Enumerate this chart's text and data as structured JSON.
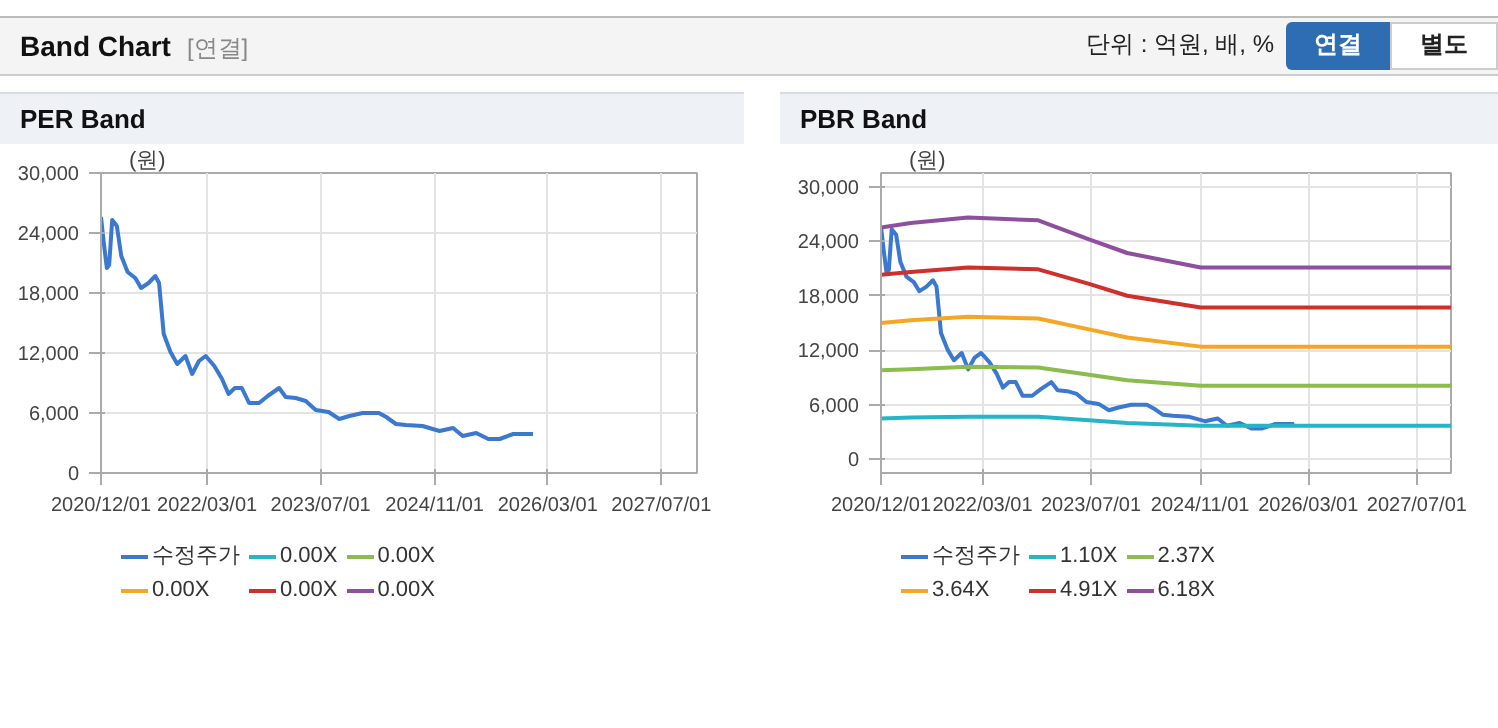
{
  "chart_data": [
    {
      "type": "other",
      "title": "Band Chart",
      "annotations": [
        "[연결]",
        "단위 : 억원, 배, %",
        "연결",
        "별도"
      ]
    },
    {
      "type": "line",
      "title": "PER Band",
      "ylabel": "(원)",
      "ylim": [
        0,
        30000
      ],
      "yticks": [
        0,
        {
          "value": 6000,
          "label": "6,000"
        },
        {
          "value": 12000,
          "label": "12,000"
        },
        {
          "value": 18000,
          "label": "18,000"
        },
        {
          "value": 24000,
          "label": "24,000"
        },
        {
          "value": 30000,
          "label": "30,000"
        }
      ],
      "xlim": [
        "2020-12-01",
        "2027-12-01"
      ],
      "xticks": [
        {
          "value": "2020-12-01",
          "label": "2020/12/01"
        },
        {
          "value": "2022-03-01",
          "label": "2022/03/01"
        },
        {
          "value": "2023-07-01",
          "label": "2023/07/01"
        },
        {
          "value": "2024-11-01",
          "label": "2024/11/01"
        },
        {
          "value": "2026-03-01",
          "label": "2026/03/01"
        },
        {
          "value": "2027-07-01",
          "label": "2027/07/01"
        }
      ],
      "grid": true,
      "legend": "bottom",
      "series": [
        {
          "name": "수정주가",
          "color": "#3b78d0",
          "x": [
            "2020-12-01",
            "2020-12-12",
            "2020-12-26",
            "2021-01-05",
            "2021-01-18",
            "2021-02-07",
            "2021-02-26",
            "2021-03-25",
            "2021-04-27",
            "2021-05-22",
            "2021-06-23",
            "2021-07-22",
            "2021-08-07",
            "2021-08-27",
            "2021-09-25",
            "2021-10-24",
            "2021-11-28",
            "2021-12-27",
            "2022-01-25",
            "2022-02-23",
            "2022-04-01",
            "2022-05-04",
            "2022-06-01",
            "2022-06-28",
            "2022-07-28",
            "2022-08-28",
            "2022-10-10",
            "2022-11-16",
            "2023-01-04",
            "2023-02-01",
            "2023-03-16",
            "2023-04-28",
            "2023-06-10",
            "2023-08-04",
            "2023-09-19",
            "2023-11-01",
            "2023-12-28",
            "2024-03-07",
            "2024-04-07",
            "2024-05-19",
            "2024-07-01",
            "2024-09-10",
            "2024-11-22",
            "2025-01-19",
            "2025-03-01",
            "2025-04-28",
            "2025-06-19",
            "2025-08-07",
            "2025-10-04",
            "2025-12-28"
          ],
          "values": [
            25600,
            23200,
            20500,
            20800,
            25300,
            24700,
            21700,
            20100,
            19500,
            18500,
            19000,
            19700,
            19000,
            13900,
            12100,
            10900,
            11700,
            9900,
            11200,
            11700,
            10700,
            9400,
            7900,
            8500,
            8500,
            7000,
            7000,
            7700,
            8500,
            7600,
            7500,
            7200,
            6300,
            6100,
            5400,
            5700,
            6000,
            6000,
            5600,
            4900,
            4800,
            4700,
            4200,
            4500,
            3700,
            4000,
            3400,
            3400,
            3900,
            3900
          ]
        },
        {
          "name": "0.00X",
          "color": "#26b5c6"
        },
        {
          "name": "0.00X",
          "color": "#8bbd4e"
        },
        {
          "name": "0.00X",
          "color": "#f5a623"
        },
        {
          "name": "0.00X",
          "color": "#d0302b"
        },
        {
          "name": "0.00X",
          "color": "#8e4f9e"
        }
      ]
    },
    {
      "type": "line",
      "title": "PBR Band",
      "ylabel": "(원)",
      "ylim": [
        -1500,
        31500
      ],
      "yticks": [
        0,
        {
          "value": 6000,
          "label": "6,000"
        },
        {
          "value": 12000,
          "label": "12,000"
        },
        {
          "value": 18000,
          "label": "18,000"
        },
        {
          "value": 24000,
          "label": "24,000"
        },
        {
          "value": 30000,
          "label": "30,000"
        }
      ],
      "xlim": [
        "2020-12-01",
        "2027-12-01"
      ],
      "xticks": [
        {
          "value": "2020-12-01",
          "label": "2020/12/01"
        },
        {
          "value": "2022-03-01",
          "label": "2022/03/01"
        },
        {
          "value": "2023-07-01",
          "label": "2023/07/01"
        },
        {
          "value": "2024-11-01",
          "label": "2024/11/01"
        },
        {
          "value": "2026-03-01",
          "label": "2026/03/01"
        },
        {
          "value": "2027-07-01",
          "label": "2027/07/01"
        }
      ],
      "grid": true,
      "legend": "bottom",
      "series": [
        {
          "name": "수정주가",
          "color": "#3b78d0",
          "x": [
            "2020-12-01",
            "2020-12-12",
            "2020-12-26",
            "2021-01-05",
            "2021-01-18",
            "2021-02-07",
            "2021-02-26",
            "2021-03-25",
            "2021-04-27",
            "2021-05-22",
            "2021-06-23",
            "2021-07-22",
            "2021-08-07",
            "2021-08-27",
            "2021-09-25",
            "2021-10-24",
            "2021-11-28",
            "2021-12-27",
            "2022-01-25",
            "2022-02-23",
            "2022-04-01",
            "2022-05-04",
            "2022-06-01",
            "2022-06-28",
            "2022-07-28",
            "2022-08-28",
            "2022-10-10",
            "2022-11-16",
            "2023-01-04",
            "2023-02-01",
            "2023-03-16",
            "2023-04-28",
            "2023-06-10",
            "2023-08-04",
            "2023-09-19",
            "2023-11-01",
            "2023-12-28",
            "2024-03-07",
            "2024-04-07",
            "2024-05-19",
            "2024-07-01",
            "2024-09-10",
            "2024-11-22",
            "2025-01-19",
            "2025-03-01",
            "2025-04-28",
            "2025-06-19",
            "2025-08-07",
            "2025-10-04",
            "2025-12-28"
          ],
          "values": [
            25600,
            23200,
            20500,
            20800,
            25300,
            24700,
            21700,
            20100,
            19500,
            18500,
            19000,
            19700,
            19000,
            13900,
            12100,
            10900,
            11700,
            9900,
            11200,
            11700,
            10700,
            9400,
            7900,
            8500,
            8500,
            7000,
            7000,
            7700,
            8500,
            7600,
            7500,
            7200,
            6300,
            6100,
            5400,
            5700,
            6000,
            6000,
            5600,
            4900,
            4800,
            4700,
            4200,
            4500,
            3700,
            4000,
            3400,
            3400,
            3900,
            3900
          ]
        },
        {
          "name": "1.10X",
          "color": "#26b5c6",
          "x": [
            "2020-12-01",
            "2021-04-13",
            "2021-12-27",
            "2022-11-06",
            "2023-06-22",
            "2023-12-10",
            "2024-11-04",
            "2027-12-01"
          ],
          "values": [
            4500,
            4600,
            4700,
            4700,
            4300,
            4000,
            3700,
            3700
          ]
        },
        {
          "name": "2.37X",
          "color": "#8bbd4e",
          "x": [
            "2020-12-01",
            "2021-04-13",
            "2021-12-27",
            "2022-11-06",
            "2023-06-22",
            "2023-12-10",
            "2024-11-04",
            "2027-12-01"
          ],
          "values": [
            9800,
            9900,
            10200,
            10100,
            9300,
            8700,
            8100,
            8100
          ]
        },
        {
          "name": "3.64X",
          "color": "#f5a623",
          "x": [
            "2020-12-01",
            "2021-04-13",
            "2021-12-27",
            "2022-11-06",
            "2023-06-22",
            "2023-12-10",
            "2024-11-04",
            "2027-12-01"
          ],
          "values": [
            15000,
            15300,
            15700,
            15500,
            14300,
            13400,
            12400,
            12400
          ]
        },
        {
          "name": "4.91X",
          "color": "#d0302b",
          "x": [
            "2020-12-01",
            "2021-04-13",
            "2021-12-27",
            "2022-11-06",
            "2023-06-22",
            "2023-12-10",
            "2024-11-04",
            "2027-12-01"
          ],
          "values": [
            20300,
            20600,
            21100,
            20900,
            19300,
            18000,
            16700,
            16700
          ]
        },
        {
          "name": "6.18X",
          "color": "#8e4f9e",
          "x": [
            "2020-12-01",
            "2021-04-13",
            "2021-12-27",
            "2022-11-06",
            "2023-06-22",
            "2023-12-10",
            "2024-11-04",
            "2027-12-01"
          ],
          "values": [
            25500,
            26000,
            26600,
            26300,
            24200,
            22700,
            21100,
            21100
          ]
        }
      ]
    }
  ]
}
